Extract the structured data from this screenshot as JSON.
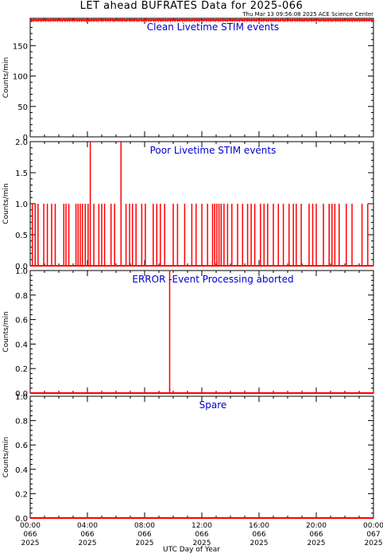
{
  "title": "LET ahead BUFRATES Data for 2025-066",
  "timestamp": "Thu Mar 13 09:56:08 2025 ACE Science Center",
  "xlabel": "UTC Day of Year",
  "colors": {
    "data": "#ff0000",
    "panel_title": "#0000cc",
    "axes": "#000000"
  },
  "chart_data": [
    {
      "type": "line",
      "title": "Clean Livetime STIM events",
      "ylabel": "Counts/min",
      "ylim": [
        0,
        195
      ],
      "yticks": [
        0,
        50,
        100,
        150
      ],
      "xlim": [
        0,
        24
      ],
      "series": [
        {
          "x": [
            0,
            24
          ],
          "y": [
            192,
            192
          ]
        }
      ],
      "noise": [
        190,
        194
      ]
    },
    {
      "type": "line",
      "title": "Poor Livetime STIM events",
      "ylabel": "Counts/min",
      "ylim": [
        0,
        2.0
      ],
      "yticks": [
        0.0,
        0.5,
        1.0,
        1.5,
        2.0
      ],
      "xlim": [
        0,
        24
      ],
      "baseline": 0,
      "spikes": [
        {
          "x": 0.15,
          "y": 1
        },
        {
          "x": 0.35,
          "y": 1
        },
        {
          "x": 0.55,
          "y": 1
        },
        {
          "x": 0.95,
          "y": 1
        },
        {
          "x": 1.2,
          "y": 1
        },
        {
          "x": 1.5,
          "y": 1
        },
        {
          "x": 1.75,
          "y": 1
        },
        {
          "x": 2.35,
          "y": 1
        },
        {
          "x": 2.5,
          "y": 1
        },
        {
          "x": 2.7,
          "y": 1
        },
        {
          "x": 3.2,
          "y": 1
        },
        {
          "x": 3.35,
          "y": 1
        },
        {
          "x": 3.5,
          "y": 1
        },
        {
          "x": 3.65,
          "y": 1
        },
        {
          "x": 3.85,
          "y": 1
        },
        {
          "x": 4.05,
          "y": 1
        },
        {
          "x": 4.2,
          "y": 2
        },
        {
          "x": 4.45,
          "y": 1
        },
        {
          "x": 4.8,
          "y": 1
        },
        {
          "x": 5.0,
          "y": 1
        },
        {
          "x": 5.2,
          "y": 1
        },
        {
          "x": 5.65,
          "y": 1
        },
        {
          "x": 5.9,
          "y": 1
        },
        {
          "x": 6.35,
          "y": 2
        },
        {
          "x": 6.7,
          "y": 1
        },
        {
          "x": 6.95,
          "y": 1
        },
        {
          "x": 7.15,
          "y": 1
        },
        {
          "x": 7.4,
          "y": 1
        },
        {
          "x": 7.8,
          "y": 1
        },
        {
          "x": 8.05,
          "y": 1
        },
        {
          "x": 8.6,
          "y": 1
        },
        {
          "x": 8.85,
          "y": 1
        },
        {
          "x": 9.1,
          "y": 1
        },
        {
          "x": 9.4,
          "y": 1
        },
        {
          "x": 10.0,
          "y": 1
        },
        {
          "x": 10.3,
          "y": 1
        },
        {
          "x": 10.8,
          "y": 1
        },
        {
          "x": 11.3,
          "y": 1
        },
        {
          "x": 11.6,
          "y": 1
        },
        {
          "x": 12.0,
          "y": 1
        },
        {
          "x": 12.4,
          "y": 1
        },
        {
          "x": 12.75,
          "y": 1
        },
        {
          "x": 12.9,
          "y": 1
        },
        {
          "x": 13.05,
          "y": 1
        },
        {
          "x": 13.2,
          "y": 1
        },
        {
          "x": 13.35,
          "y": 1
        },
        {
          "x": 13.55,
          "y": 1
        },
        {
          "x": 13.8,
          "y": 1
        },
        {
          "x": 14.1,
          "y": 1
        },
        {
          "x": 14.5,
          "y": 1
        },
        {
          "x": 14.85,
          "y": 1
        },
        {
          "x": 15.2,
          "y": 1
        },
        {
          "x": 15.45,
          "y": 1
        },
        {
          "x": 15.7,
          "y": 1
        },
        {
          "x": 16.1,
          "y": 1
        },
        {
          "x": 16.35,
          "y": 1
        },
        {
          "x": 16.6,
          "y": 1
        },
        {
          "x": 17.0,
          "y": 1
        },
        {
          "x": 17.35,
          "y": 1
        },
        {
          "x": 17.7,
          "y": 1
        },
        {
          "x": 18.1,
          "y": 1
        },
        {
          "x": 18.4,
          "y": 1
        },
        {
          "x": 18.6,
          "y": 1
        },
        {
          "x": 18.95,
          "y": 1
        },
        {
          "x": 19.5,
          "y": 1
        },
        {
          "x": 19.75,
          "y": 1
        },
        {
          "x": 20.0,
          "y": 1
        },
        {
          "x": 20.5,
          "y": 1
        },
        {
          "x": 20.9,
          "y": 1
        },
        {
          "x": 21.1,
          "y": 1
        },
        {
          "x": 21.3,
          "y": 1
        },
        {
          "x": 21.6,
          "y": 1
        },
        {
          "x": 22.1,
          "y": 1
        },
        {
          "x": 22.5,
          "y": 1
        },
        {
          "x": 23.2,
          "y": 1
        },
        {
          "x": 23.6,
          "y": 1
        }
      ]
    },
    {
      "type": "line",
      "title": "ERROR -Event Processing aborted",
      "ylabel": "Counts/min",
      "ylim": [
        0,
        1.0
      ],
      "yticks": [
        0.0,
        0.2,
        0.4,
        0.6,
        0.8,
        1.0
      ],
      "xlim": [
        0,
        24
      ],
      "baseline": 0,
      "spikes": [
        {
          "x": 9.75,
          "y": 1
        }
      ]
    },
    {
      "type": "line",
      "title": "Spare",
      "ylabel": "Counts/min",
      "ylim": [
        0,
        1.0
      ],
      "yticks": [
        0.0,
        0.2,
        0.4,
        0.6,
        0.8,
        1.0
      ],
      "xlim": [
        0,
        24
      ],
      "baseline": 0,
      "spikes": []
    }
  ],
  "xticks": [
    {
      "value": 0,
      "time": "00:00",
      "doy": "066",
      "year": "2025"
    },
    {
      "value": 4,
      "time": "04:00",
      "doy": "066",
      "year": "2025"
    },
    {
      "value": 8,
      "time": "08:00",
      "doy": "066",
      "year": "2025"
    },
    {
      "value": 12,
      "time": "12:00",
      "doy": "066",
      "year": "2025"
    },
    {
      "value": 16,
      "time": "16:00",
      "doy": "066",
      "year": "2025"
    },
    {
      "value": 20,
      "time": "20:00",
      "doy": "066",
      "year": "2025"
    },
    {
      "value": 24,
      "time": "00:00",
      "doy": "067",
      "year": "2025"
    }
  ]
}
